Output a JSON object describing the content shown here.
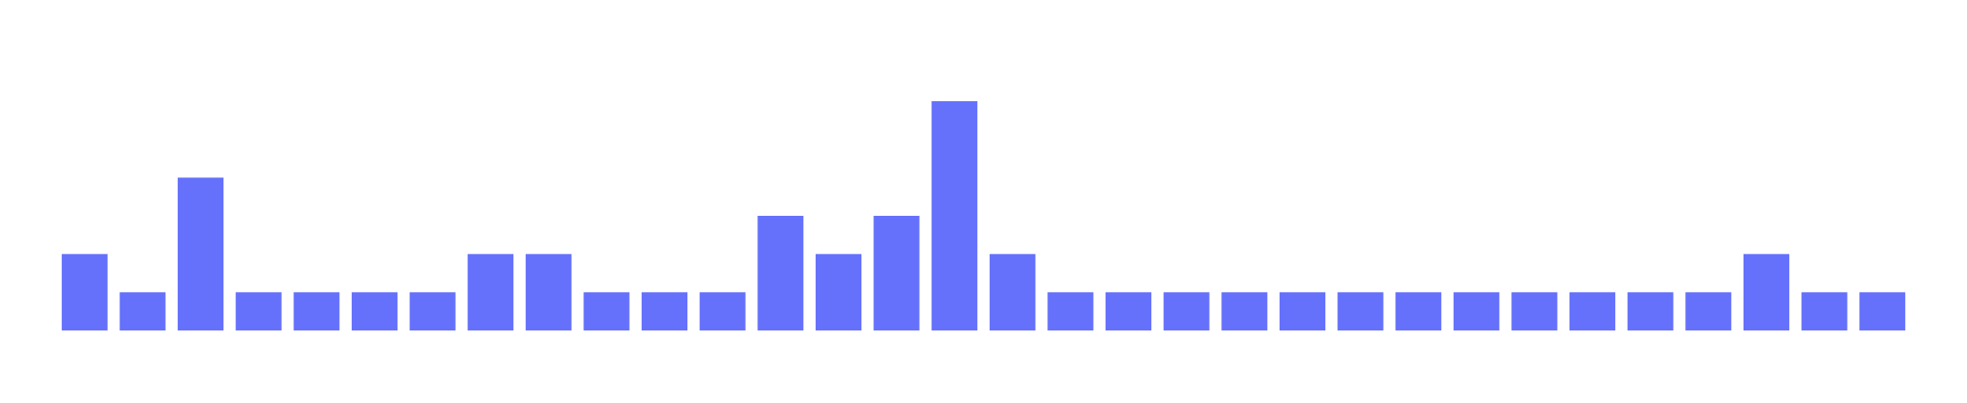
{
  "chart_data": {
    "type": "bar",
    "values": [
      2,
      1,
      4,
      1,
      1,
      1,
      1,
      2,
      2,
      1,
      1,
      1,
      3,
      2,
      3,
      6,
      2,
      1,
      1,
      1,
      1,
      1,
      1,
      1,
      1,
      1,
      1,
      1,
      1,
      2,
      1,
      1
    ],
    "color": "#6571fb",
    "ylim": [
      0,
      6
    ]
  }
}
